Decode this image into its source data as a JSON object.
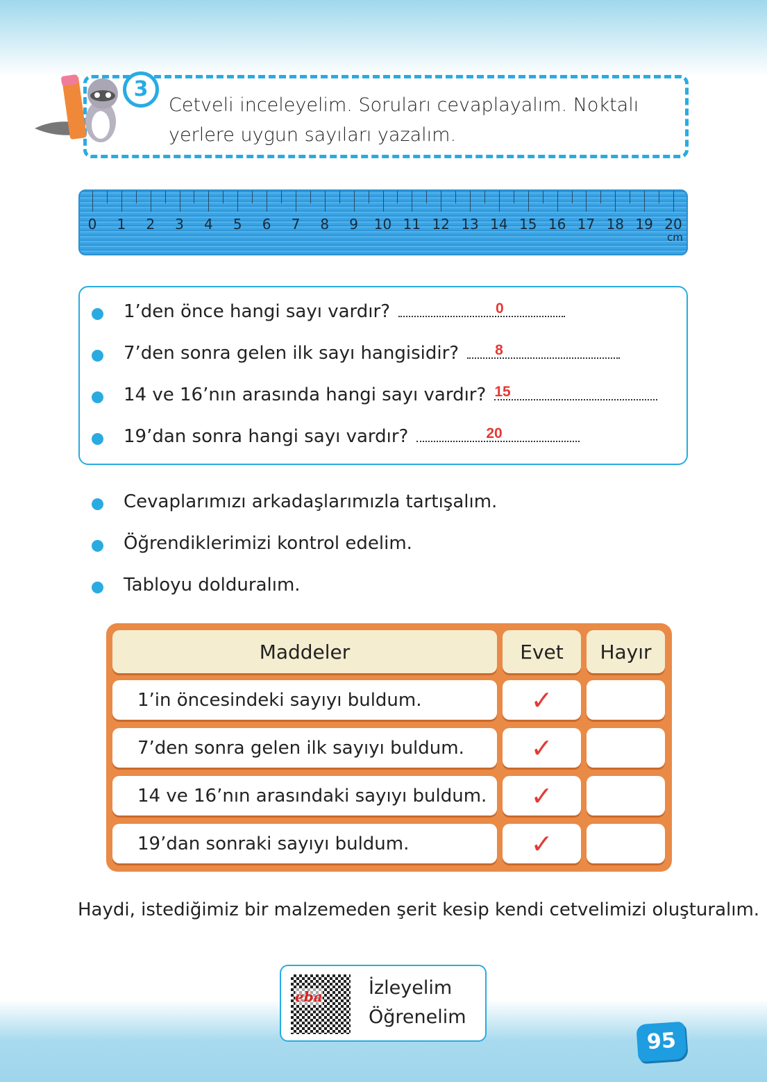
{
  "instruction": {
    "number": "3",
    "text": "Cetveli inceleyelim. Soruları cevaplayalım. Noktalı yerlere uygun sayıları yazalım."
  },
  "ruler": {
    "labels": [
      "0",
      "1",
      "2",
      "3",
      "4",
      "5",
      "6",
      "7",
      "8",
      "9",
      "10",
      "11",
      "12",
      "13",
      "14",
      "15",
      "16",
      "17",
      "18",
      "19",
      "20"
    ],
    "unit": "cm"
  },
  "questions": [
    {
      "text": "1’den önce hangi sayı vardır?",
      "answer": "0"
    },
    {
      "text": "7’den sonra gelen ilk sayı hangisidir?",
      "answer": "8"
    },
    {
      "text": "14 ve 16’nın arasında hangi sayı vardır?",
      "answer": "15"
    },
    {
      "text": "19’dan sonra hangi sayı vardır?",
      "answer": "20"
    }
  ],
  "bullets": [
    "Cevaplarımızı arkadaşlarımızla tartışalım.",
    "Öğrendiklerimizi kontrol edelim.",
    "Tabloyu dolduralım."
  ],
  "table": {
    "headers": [
      "Maddeler",
      "Evet",
      "Hayır"
    ],
    "rows": [
      {
        "item": "1’in öncesindeki sayıyı buldum.",
        "evet": "✓",
        "hayir": ""
      },
      {
        "item": "7’den sonra gelen ilk sayıyı buldum.",
        "evet": "✓",
        "hayir": ""
      },
      {
        "item": "14 ve 16’nın arasındaki sayıyı buldum.",
        "evet": "✓",
        "hayir": ""
      },
      {
        "item": "19’dan sonraki sayıyı buldum.",
        "evet": "✓",
        "hayir": ""
      }
    ]
  },
  "closing": "Haydi, istediğimiz bir malzemeden şerit kesip kendi cetvelimizi oluşturalım.",
  "qr": {
    "logo": "eba",
    "line1": "İzleyelim",
    "line2": "Öğrenelim"
  },
  "page_number": "95",
  "colors": {
    "accent": "#29abe2",
    "answer": "#e53935",
    "table": "#e98a47",
    "header": "#f5edd0"
  }
}
